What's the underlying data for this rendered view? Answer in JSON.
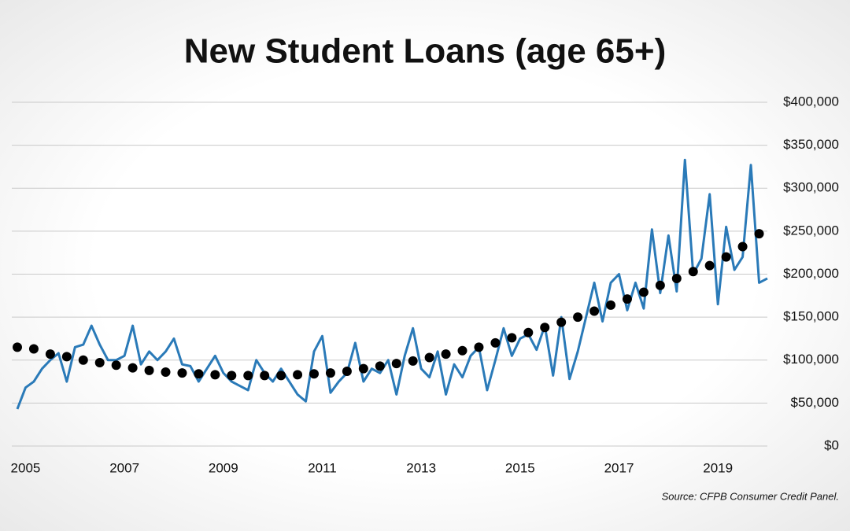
{
  "chart_data": {
    "type": "line",
    "title": "New Student Loans (age 65+)",
    "source": "Source: CFPB Consumer Credit Panel.",
    "categories": [
      null,
      "2005",
      null,
      null,
      null,
      null,
      null,
      null,
      null,
      null,
      null,
      null,
      null,
      "2007",
      null,
      null,
      null,
      null,
      null,
      null,
      null,
      null,
      null,
      null,
      null,
      "2009",
      null,
      null,
      null,
      null,
      null,
      null,
      null,
      null,
      null,
      null,
      null,
      "2011",
      null,
      null,
      null,
      null,
      null,
      null,
      null,
      null,
      null,
      null,
      null,
      "2013",
      null,
      null,
      null,
      null,
      null,
      null,
      null,
      null,
      null,
      null,
      null,
      "2015",
      null,
      null,
      null,
      null,
      null,
      null,
      null,
      null,
      null,
      null,
      null,
      "2017",
      null,
      null,
      null,
      null,
      null,
      null,
      null,
      null,
      null,
      null,
      null,
      "2019",
      null,
      null,
      null,
      null,
      null,
      null
    ],
    "series": [
      {
        "type": "line",
        "color": "#2a7ab8",
        "values": [
          43000,
          68000,
          75000,
          90000,
          100000,
          108000,
          75000,
          115000,
          118000,
          140000,
          118000,
          100000,
          100000,
          105000,
          140000,
          95000,
          110000,
          100000,
          110000,
          125000,
          95000,
          93000,
          75000,
          90000,
          105000,
          85000,
          75000,
          70000,
          65000,
          100000,
          85000,
          75000,
          90000,
          75000,
          60000,
          52000,
          110000,
          128000,
          62000,
          75000,
          85000,
          120000,
          75000,
          90000,
          85000,
          100000,
          60000,
          105000,
          137000,
          90000,
          80000,
          110000,
          60000,
          95000,
          80000,
          105000,
          115000,
          65000,
          100000,
          137000,
          105000,
          125000,
          130000,
          112000,
          140000,
          82000,
          150000,
          78000,
          110000,
          150000,
          190000,
          145000,
          190000,
          200000,
          158000,
          190000,
          160000,
          252000,
          178000,
          245000,
          180000,
          333000,
          200000,
          218000,
          293000,
          165000,
          255000,
          205000,
          220000,
          327000,
          190000,
          195000
        ]
      },
      {
        "type": "scatter",
        "color": "#000000",
        "values": [
          115000,
          null,
          113000,
          null,
          107000,
          null,
          104000,
          null,
          100000,
          null,
          97000,
          null,
          94000,
          null,
          91000,
          null,
          88000,
          null,
          86000,
          null,
          85000,
          null,
          84000,
          null,
          83000,
          null,
          82000,
          null,
          82000,
          null,
          82000,
          null,
          82000,
          null,
          83000,
          null,
          84000,
          null,
          85000,
          null,
          87000,
          null,
          90000,
          null,
          93000,
          null,
          96000,
          null,
          99000,
          null,
          103000,
          null,
          107000,
          null,
          111000,
          null,
          115000,
          null,
          120000,
          null,
          126000,
          null,
          132000,
          null,
          138000,
          null,
          144000,
          null,
          150000,
          null,
          157000,
          null,
          164000,
          null,
          171000,
          null,
          179000,
          null,
          187000,
          null,
          195000,
          null,
          203000,
          null,
          210000,
          null,
          220000,
          null,
          232000,
          null,
          247000,
          null
        ]
      }
    ],
    "ylim": [
      0,
      400000
    ],
    "yticks": [
      {
        "value": 0,
        "label": "$0"
      },
      {
        "value": 50000,
        "label": "$50,000"
      },
      {
        "value": 100000,
        "label": "$100,000"
      },
      {
        "value": 150000,
        "label": "$150,000"
      },
      {
        "value": 200000,
        "label": "$200,000"
      },
      {
        "value": 250000,
        "label": "$250,000"
      },
      {
        "value": 300000,
        "label": "$300,000"
      },
      {
        "value": 350000,
        "label": "$350,000"
      },
      {
        "value": 400000,
        "label": "$400,000"
      }
    ],
    "grid": true
  }
}
